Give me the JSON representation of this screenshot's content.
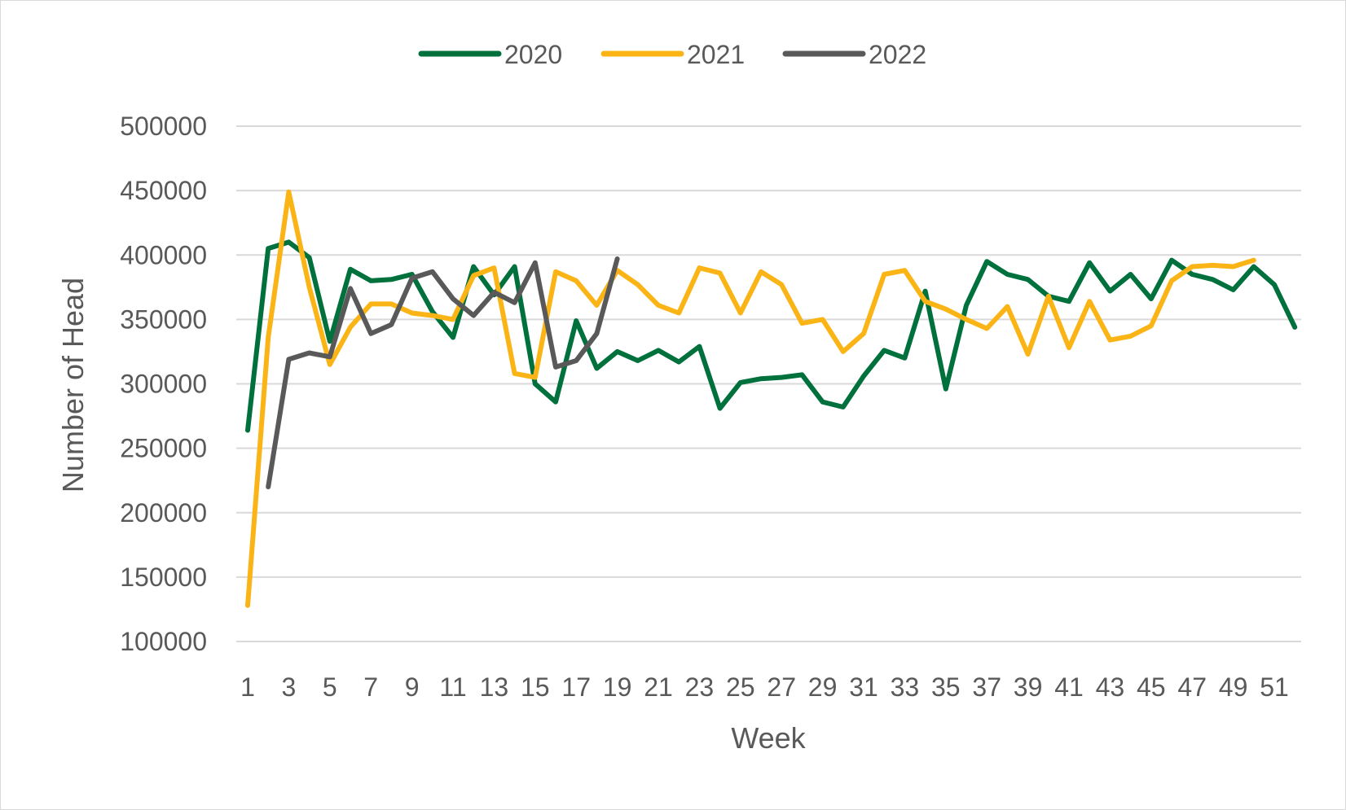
{
  "chart_data": {
    "type": "line",
    "title": "",
    "xlabel": "Week",
    "ylabel": "Number of Head",
    "ylim": [
      100000,
      500000
    ],
    "yticks": [
      100000,
      150000,
      200000,
      250000,
      300000,
      350000,
      400000,
      450000,
      500000
    ],
    "xticks": [
      1,
      3,
      5,
      7,
      9,
      11,
      13,
      15,
      17,
      19,
      21,
      23,
      25,
      27,
      29,
      31,
      33,
      35,
      37,
      39,
      41,
      43,
      45,
      47,
      49,
      51
    ],
    "x_range": [
      1,
      52
    ],
    "grid": "horizontal",
    "legend_position": "top",
    "series": [
      {
        "name": "2020",
        "color": "#00703c",
        "x": [
          1,
          2,
          3,
          4,
          5,
          6,
          7,
          8,
          9,
          10,
          11,
          12,
          13,
          14,
          15,
          16,
          17,
          18,
          19,
          20,
          21,
          22,
          23,
          24,
          25,
          26,
          27,
          28,
          29,
          30,
          31,
          32,
          33,
          34,
          35,
          36,
          37,
          38,
          39,
          40,
          41,
          42,
          43,
          44,
          45,
          46,
          47,
          48,
          49,
          50,
          51,
          52
        ],
        "values": [
          264000,
          405000,
          410000,
          398000,
          333000,
          389000,
          380000,
          381000,
          385000,
          356000,
          336000,
          391000,
          369000,
          391000,
          300000,
          286000,
          349000,
          312000,
          325000,
          318000,
          326000,
          317000,
          329000,
          281000,
          301000,
          304000,
          305000,
          307000,
          286000,
          282000,
          306000,
          326000,
          320000,
          372000,
          296000,
          361000,
          395000,
          385000,
          381000,
          368000,
          364000,
          394000,
          372000,
          385000,
          366000,
          396000,
          385000,
          381000,
          373000,
          391000,
          377000,
          344000
        ]
      },
      {
        "name": "2021",
        "color": "#fbb416",
        "x": [
          1,
          2,
          3,
          4,
          5,
          6,
          7,
          8,
          9,
          10,
          11,
          12,
          13,
          14,
          15,
          16,
          17,
          18,
          19,
          20,
          21,
          22,
          23,
          24,
          25,
          26,
          27,
          28,
          29,
          30,
          31,
          32,
          33,
          34,
          35,
          36,
          37,
          38,
          39,
          40,
          41,
          42,
          43,
          44,
          45,
          46,
          47,
          48,
          49,
          50
        ],
        "values": [
          128000,
          336000,
          449000,
          375000,
          315000,
          344000,
          362000,
          362000,
          355000,
          353000,
          350000,
          384000,
          390000,
          308000,
          305000,
          387000,
          380000,
          361000,
          388000,
          377000,
          361000,
          355000,
          390000,
          386000,
          355000,
          387000,
          377000,
          347000,
          350000,
          325000,
          339000,
          385000,
          388000,
          364000,
          358000,
          350000,
          343000,
          360000,
          323000,
          368000,
          328000,
          364000,
          334000,
          337000,
          345000,
          380000,
          391000,
          392000,
          391000,
          396000
        ]
      },
      {
        "name": "2022",
        "color": "#595959",
        "x": [
          2,
          3,
          4,
          5,
          6,
          7,
          8,
          9,
          10,
          11,
          12,
          13,
          14,
          15,
          16,
          17,
          18,
          19
        ],
        "values": [
          220000,
          319000,
          324000,
          321000,
          374000,
          339000,
          346000,
          382000,
          387000,
          366000,
          353000,
          371000,
          363000,
          394000,
          313000,
          318000,
          339000,
          397000
        ]
      }
    ]
  }
}
